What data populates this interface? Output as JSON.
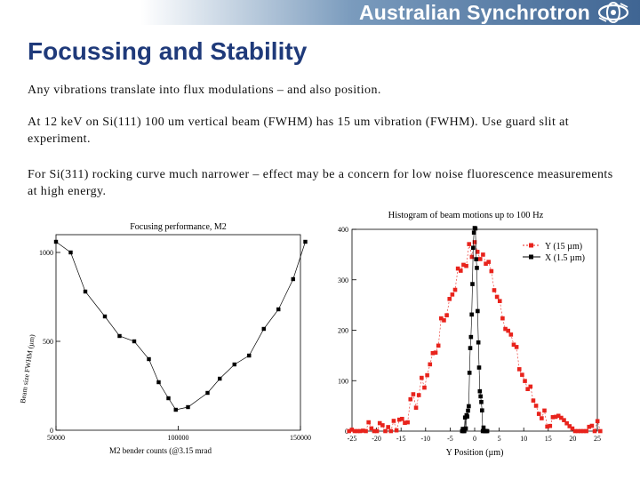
{
  "header": {
    "brand": "Australian Synchrotron",
    "logo_icon": "synchrotron-logo-icon",
    "banner_colors": [
      "#ffffff",
      "#3f6593"
    ]
  },
  "slide": {
    "title": "Focussing and Stability",
    "paragraphs": [
      "Any vibrations translate into flux modulations – and also position.",
      "At 12 keV on Si(111) 100 um vertical beam (FWHM) has 15 um vibration (FWHM).  Use guard slit at experiment.",
      "For Si(311) rocking curve much narrower – effect may be a concern for low noise fluorescence measurements at high energy."
    ]
  },
  "chart_data": [
    {
      "type": "line",
      "title": "Focusing performance, M2",
      "xlabel": "M2 bender counts (@3.15 mrad",
      "ylabel": "Beam size FWHM (µm)",
      "xlim": [
        50000,
        150000
      ],
      "ylim": [
        0,
        1100
      ],
      "x_ticks": [
        "50000",
        "100000",
        "150000"
      ],
      "y_ticks": [
        "0",
        "500",
        "1000"
      ],
      "series": [
        {
          "color": "#000000",
          "points": [
            [
              50000,
              1060
            ],
            [
              56000,
              1000
            ],
            [
              62000,
              780
            ],
            [
              70000,
              640
            ],
            [
              76000,
              530
            ],
            [
              82000,
              500
            ],
            [
              88000,
              400
            ],
            [
              92000,
              270
            ],
            [
              96000,
              180
            ],
            [
              99000,
              115
            ],
            [
              104000,
              130
            ],
            [
              112000,
              210
            ],
            [
              117000,
              290
            ],
            [
              123000,
              370
            ],
            [
              129000,
              420
            ],
            [
              135000,
              570
            ],
            [
              141000,
              680
            ],
            [
              147000,
              850
            ],
            [
              152000,
              1060
            ]
          ]
        }
      ]
    },
    {
      "type": "scatter",
      "title": "Histogram of beam motions up to 100 Hz",
      "xlabel": "Y Position (µm)",
      "ylabel": "",
      "xlim": [
        -25,
        25
      ],
      "ylim": [
        0,
        400
      ],
      "x_ticks": [
        "-25",
        "-20",
        "-15",
        "-10",
        "-5",
        "0",
        "5",
        "10",
        "15",
        "20",
        "25"
      ],
      "y_ticks": [
        "0",
        "100",
        "200",
        "300",
        "400"
      ],
      "legend_position": "top-right",
      "series": [
        {
          "name": "Y (15 µm)",
          "color": "#e8231c",
          "sigma": 6.4,
          "peak": 358,
          "marker": "square"
        },
        {
          "name": "X (1.5 µm)",
          "color": "#000000",
          "sigma": 0.64,
          "peak": 395,
          "marker": "square"
        }
      ]
    }
  ]
}
